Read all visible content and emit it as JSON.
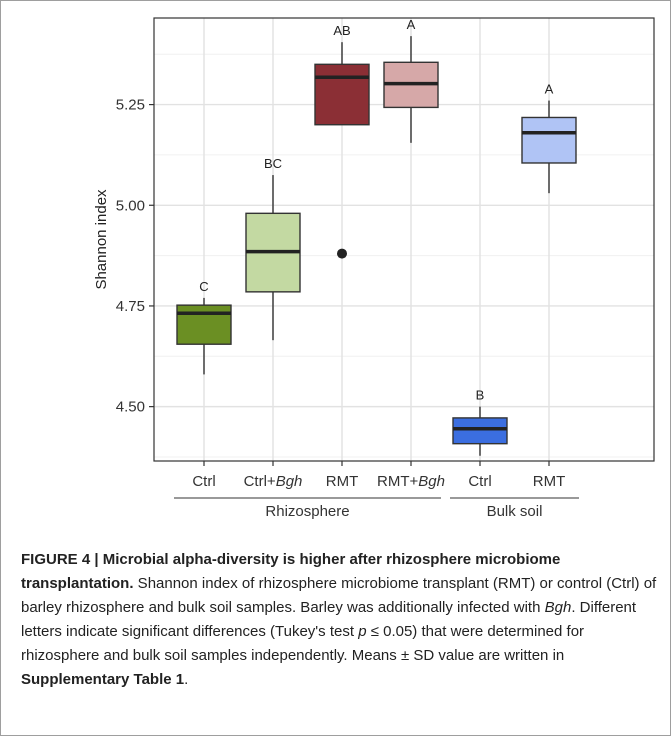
{
  "chart_data": {
    "type": "box",
    "ylabel": "Shannon index",
    "ylim": [
      4.365,
      5.465
    ],
    "yticks": [
      4.5,
      4.75,
      5.0,
      5.25
    ],
    "ytick_labels": [
      "4.50",
      "4.75",
      "5.00",
      "5.25"
    ],
    "grid": true,
    "categories": [
      {
        "label": "Ctrl",
        "italic_suffix": ""
      },
      {
        "label": "Ctrl+",
        "italic_suffix": "Bgh"
      },
      {
        "label": "RMT",
        "italic_suffix": ""
      },
      {
        "label": "RMT+",
        "italic_suffix": "Bgh"
      },
      {
        "label": "Ctrl",
        "italic_suffix": ""
      },
      {
        "label": "RMT",
        "italic_suffix": ""
      }
    ],
    "groups": [
      {
        "name": "Rhizosphere",
        "categories": [
          0,
          1,
          2,
          3
        ]
      },
      {
        "name": "Bulk soil",
        "categories": [
          4,
          5
        ]
      }
    ],
    "boxes": [
      {
        "whisker_low": 4.58,
        "q1": 4.655,
        "median": 4.732,
        "q3": 4.752,
        "whisker_high": 4.77,
        "outliers": [],
        "significance": "C",
        "fill": "#6b8f23"
      },
      {
        "whisker_low": 4.665,
        "q1": 4.785,
        "median": 4.885,
        "q3": 4.98,
        "whisker_high": 5.075,
        "outliers": [],
        "significance": "BC",
        "fill": "#c3d9a2"
      },
      {
        "whisker_low": 5.2,
        "q1": 5.2,
        "median": 5.318,
        "q3": 5.35,
        "whisker_high": 5.405,
        "outliers": [
          4.88
        ],
        "significance": "AB",
        "fill": "#8b2f35"
      },
      {
        "whisker_low": 5.155,
        "q1": 5.243,
        "median": 5.302,
        "q3": 5.355,
        "whisker_high": 5.42,
        "outliers": [],
        "significance": "A",
        "fill": "#d6a8a8"
      },
      {
        "whisker_low": 4.378,
        "q1": 4.408,
        "median": 4.445,
        "q3": 4.472,
        "whisker_high": 4.5,
        "outliers": [],
        "significance": "B",
        "fill": "#3b6ee0"
      },
      {
        "whisker_low": 5.03,
        "q1": 5.105,
        "median": 5.18,
        "q3": 5.218,
        "whisker_high": 5.26,
        "outliers": [],
        "significance": "A",
        "fill": "#b0c4f5"
      }
    ]
  },
  "caption": {
    "label": "FIGURE 4 |",
    "title": " Microbial alpha-diversity is higher after rhizosphere microbiome transplantation.",
    "text1": " Shannon index of rhizosphere microbiome transplant (RMT) or control (Ctrl) of barley rhizosphere and bulk soil samples. Barley was additionally infected with ",
    "pathogen": "Bgh",
    "text2": ". Different letters indicate significant differences (Tukey's test ",
    "p_symbol": "p",
    "text3": " ≤ 0.05) that were determined for rhizosphere and bulk soil samples independently. Means ± SD value are written in ",
    "ref": "Supplementary Table 1",
    "end": "."
  }
}
